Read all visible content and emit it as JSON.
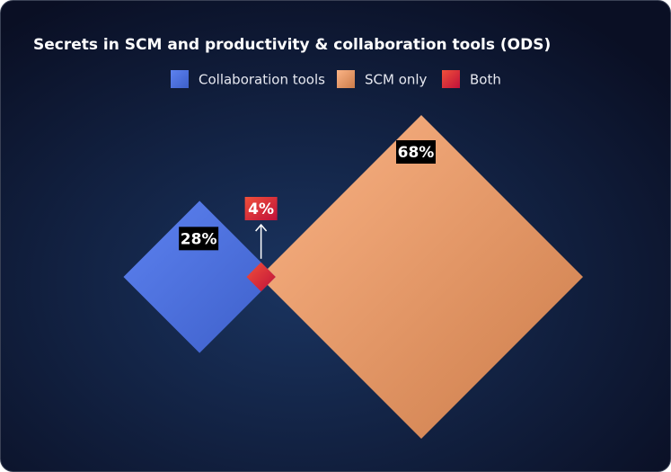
{
  "chart_data": {
    "type": "diamond",
    "title": "Secrets in SCM and productivity & collaboration tools (ODS)",
    "series": [
      {
        "name": "Collaboration tools",
        "color": "#4f72e3",
        "values": [
          28
        ],
        "value_labels": [
          "28%"
        ]
      },
      {
        "name": "SCM only",
        "color": "#f0a06c",
        "values": [
          68
        ],
        "value_labels": [
          "68%"
        ]
      },
      {
        "name": "Both",
        "color": "#e3283f",
        "values": [
          4
        ],
        "value_labels": [
          "4%"
        ]
      }
    ]
  }
}
